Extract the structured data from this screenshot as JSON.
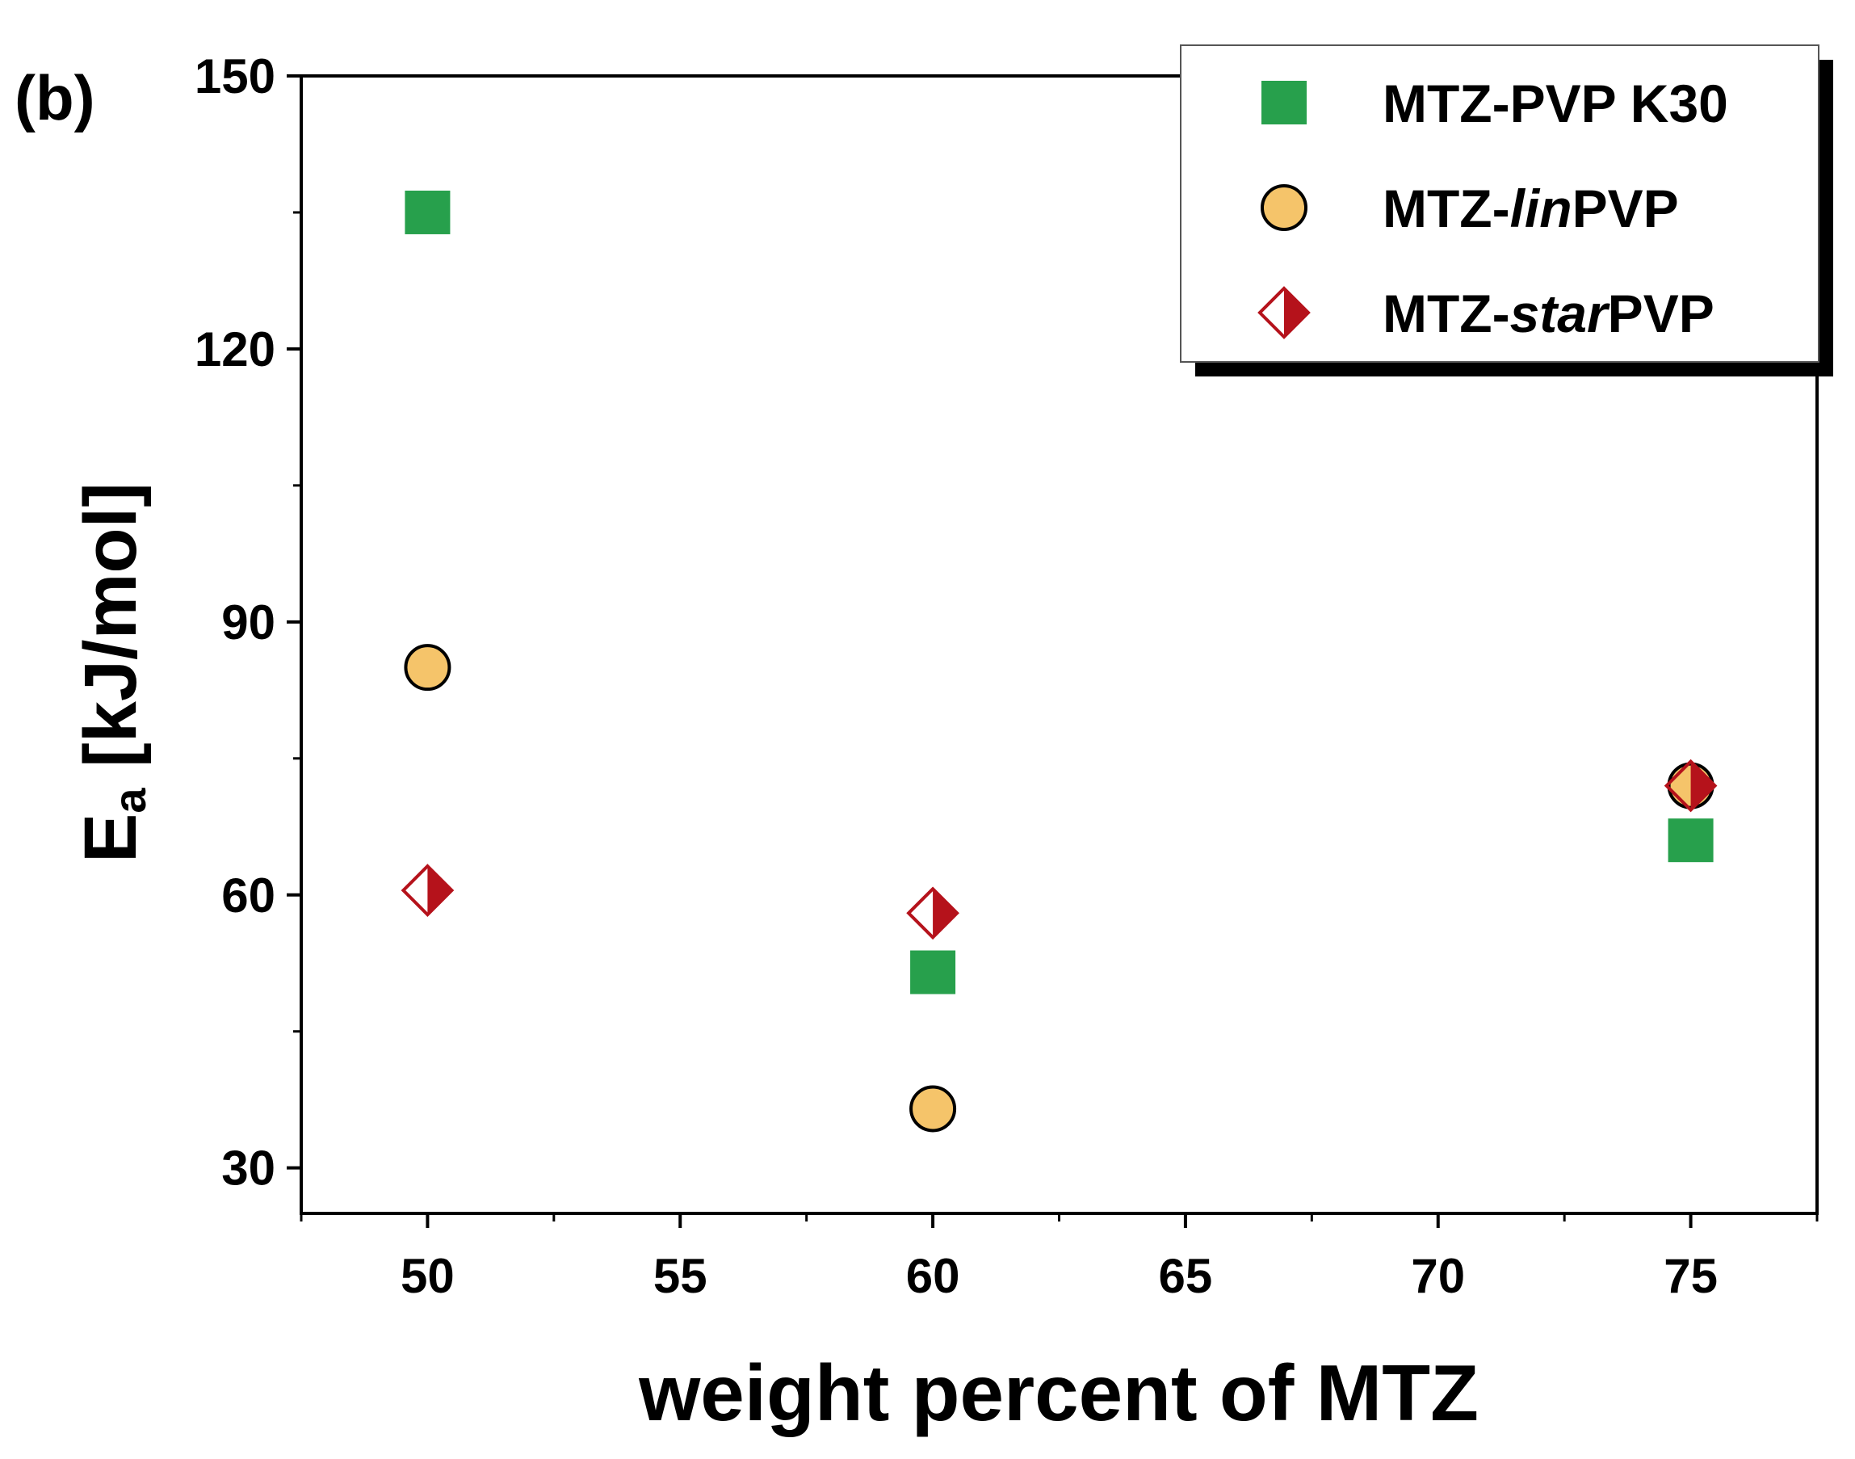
{
  "panel_label": "(b)",
  "chart_data": {
    "type": "scatter",
    "title": "",
    "xlabel": "weight percent of MTZ",
    "ylabel": {
      "main": "E",
      "subscript": "a",
      "rest": " [kJ/mol]"
    },
    "xlim": [
      47.5,
      77.5
    ],
    "ylim": [
      25,
      150
    ],
    "x_ticks": [
      50,
      55,
      60,
      65,
      70,
      75
    ],
    "y_ticks": [
      30,
      60,
      90,
      120,
      150
    ],
    "grid": false,
    "legend_position": "top-right",
    "series": [
      {
        "name": "MTZ-PVP K30",
        "name_parts": [
          {
            "text": "MTZ-PVP K30",
            "italic": false
          }
        ],
        "marker": "square",
        "color": "#27a04c",
        "points": [
          {
            "x": 50,
            "y": 135
          },
          {
            "x": 60,
            "y": 51.5
          },
          {
            "x": 75,
            "y": 66
          }
        ]
      },
      {
        "name": "MTZ-linPVP",
        "name_parts": [
          {
            "text": "MTZ-",
            "italic": false
          },
          {
            "text": "lin",
            "italic": true
          },
          {
            "text": "PVP",
            "italic": false
          }
        ],
        "marker": "circle",
        "color": "#f5c46a",
        "points": [
          {
            "x": 50,
            "y": 85
          },
          {
            "x": 60,
            "y": 36.5
          },
          {
            "x": 75,
            "y": 72
          }
        ]
      },
      {
        "name": "MTZ-starPVP",
        "name_parts": [
          {
            "text": "MTZ-",
            "italic": false
          },
          {
            "text": "star",
            "italic": true
          },
          {
            "text": "PVP",
            "italic": false
          }
        ],
        "marker": "half-diamond",
        "color": "#b5121b",
        "points": [
          {
            "x": 50,
            "y": 60.5
          },
          {
            "x": 60,
            "y": 58
          },
          {
            "x": 75,
            "y": 72
          }
        ]
      }
    ]
  }
}
